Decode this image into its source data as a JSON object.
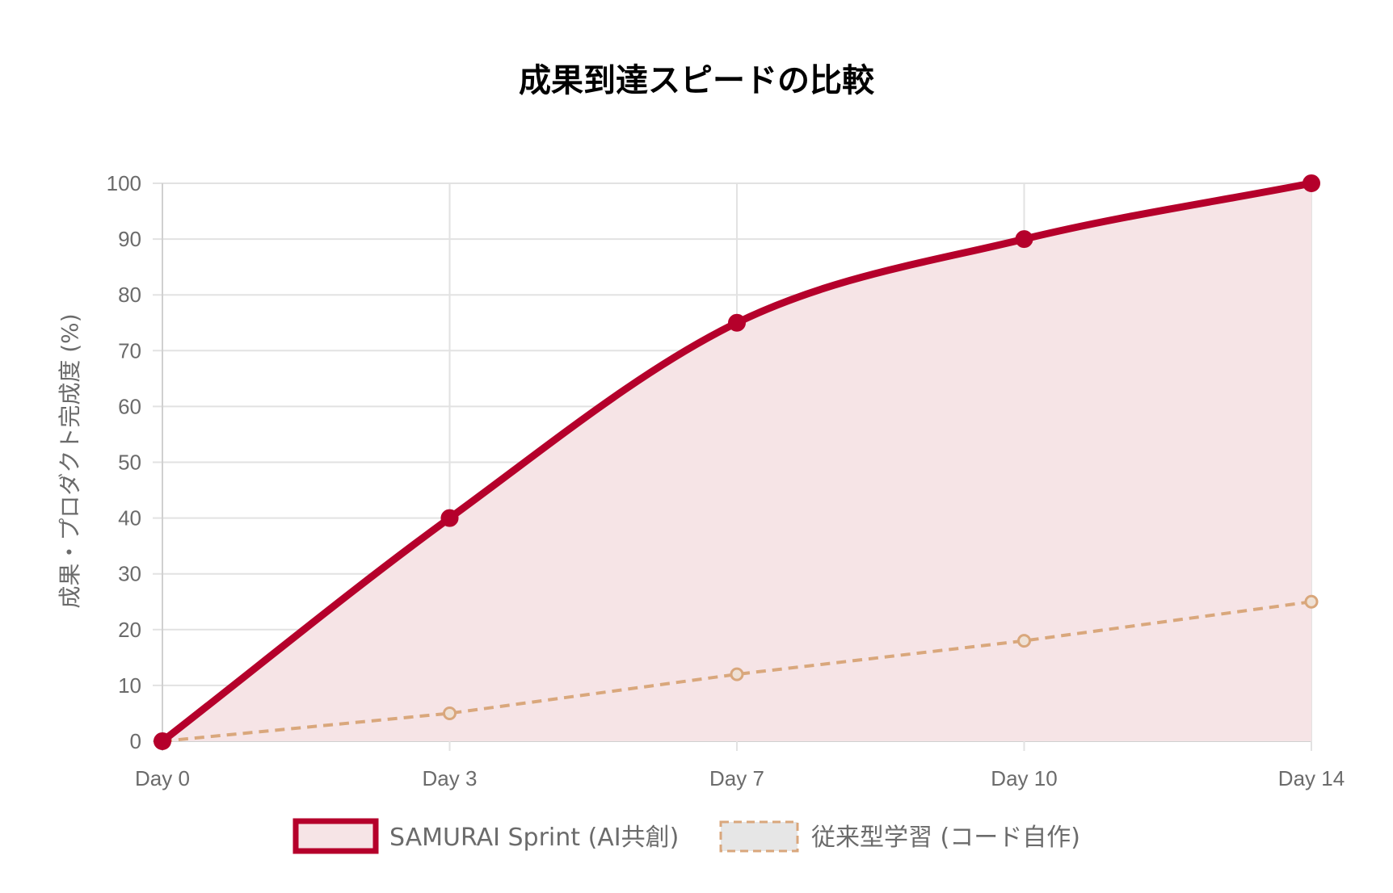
{
  "chart_data": {
    "type": "line",
    "title": "成果到達スピードの比較",
    "ylabel": "成果・プロダクト完成度 (%)",
    "xlabel": "",
    "categories": [
      "Day 0",
      "Day 3",
      "Day 7",
      "Day 10",
      "Day 14"
    ],
    "x": [
      0,
      3,
      7,
      10,
      14
    ],
    "ylim": [
      0,
      100
    ],
    "yticks": [
      0,
      10,
      20,
      30,
      40,
      50,
      60,
      70,
      80,
      90,
      100
    ],
    "grid": true,
    "legend_position": "bottom",
    "series": [
      {
        "name": "SAMURAI Sprint (AI共創)",
        "values": [
          0,
          40,
          75,
          90,
          100
        ],
        "color": "#b5002b",
        "fill": "#f6e4e6",
        "style": "solid-filled"
      },
      {
        "name": "従来型学習 (コード自作)",
        "values": [
          0,
          5,
          12,
          18,
          25
        ],
        "color": "#d9a77c",
        "fill": "#e6e6e6",
        "style": "dashed"
      }
    ]
  }
}
